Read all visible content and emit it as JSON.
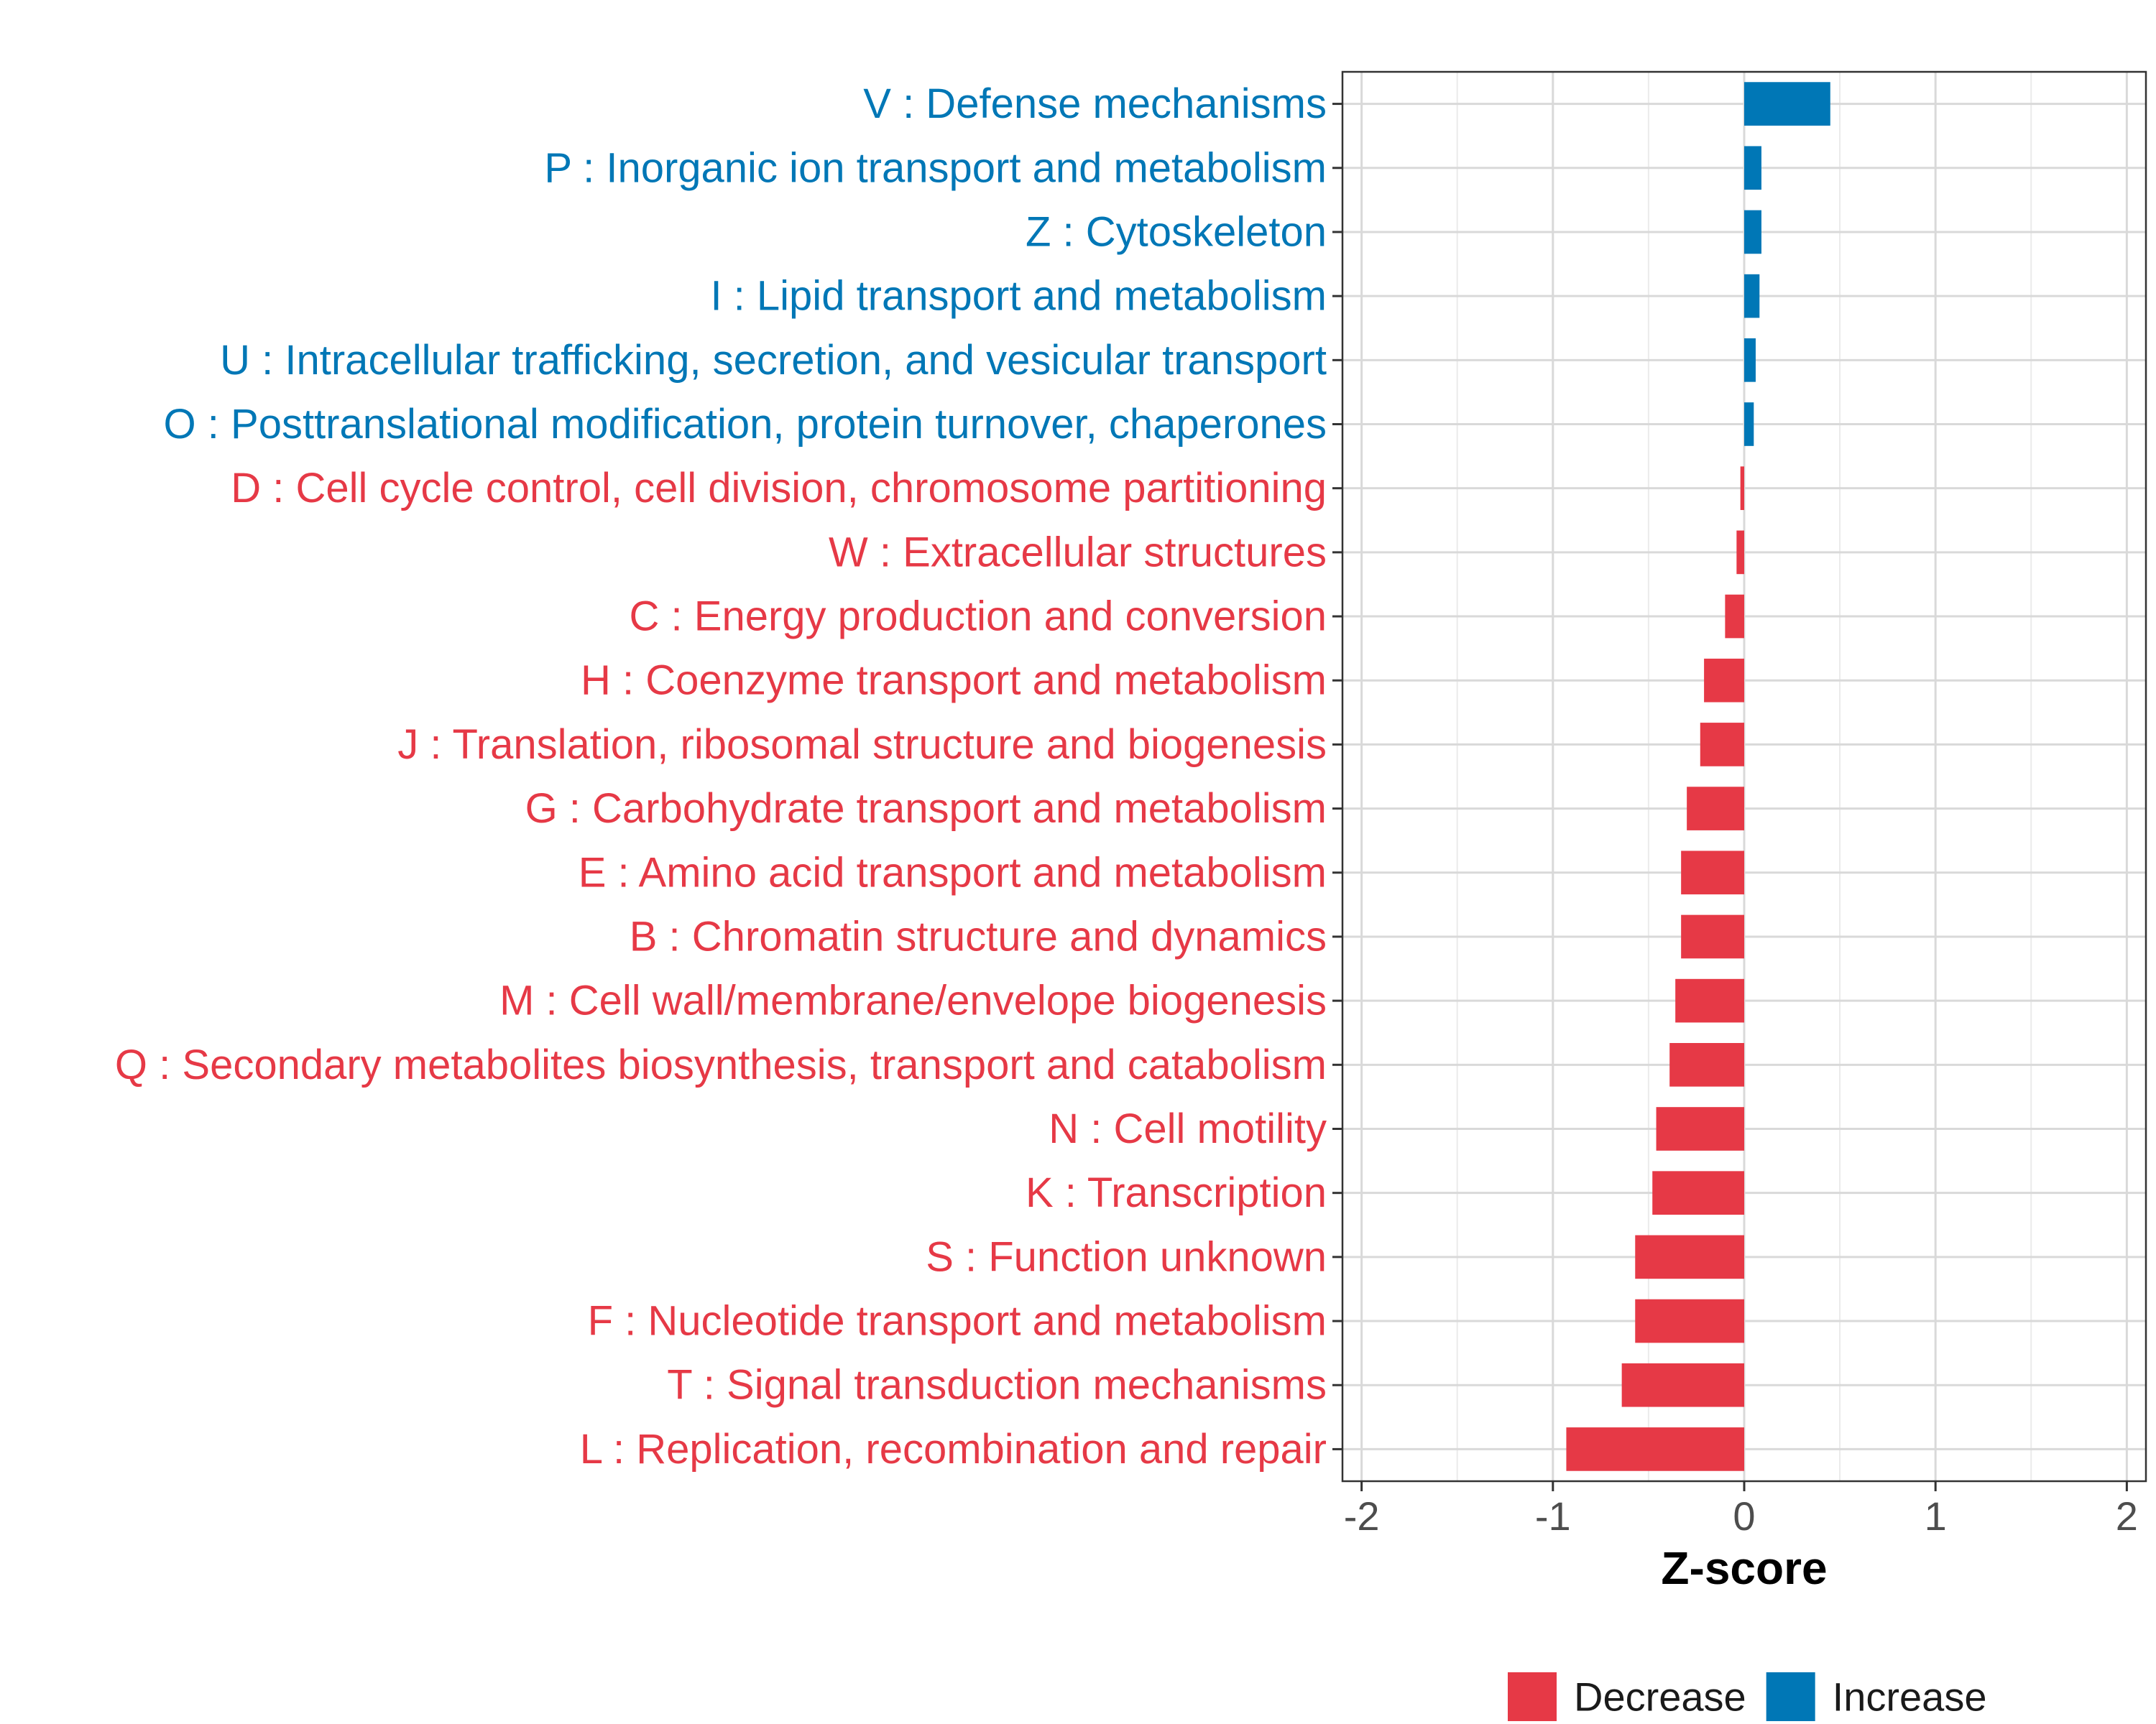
{
  "chart_data": {
    "type": "bar",
    "orientation": "horizontal",
    "title": "",
    "xlabel": "Z-score",
    "ylabel": "",
    "xlim": [
      -2.1,
      2.1
    ],
    "xticks": [
      -2,
      -1,
      0,
      1,
      2
    ],
    "xtick_labels": [
      "-2",
      "-1",
      "0",
      "1",
      "2"
    ],
    "grid": true,
    "legend_position": "bottom",
    "colors": {
      "Decrease": "#E63946",
      "Increase": "#0077B6"
    },
    "categories": [
      "V : Defense mechanisms",
      "P : Inorganic ion transport and metabolism",
      "Z : Cytoskeleton",
      "I : Lipid transport and metabolism",
      "U : Intracellular trafficking, secretion, and vesicular transport",
      "O : Posttranslational modification, protein turnover, chaperones",
      "D : Cell cycle control, cell division, chromosome partitioning",
      "W : Extracellular structures",
      "C : Energy production and conversion",
      "H : Coenzyme transport and metabolism",
      "J : Translation, ribosomal structure and biogenesis",
      "G : Carbohydrate transport and metabolism",
      "E : Amino acid transport and metabolism",
      "B : Chromatin structure and dynamics",
      "M : Cell wall/membrane/envelope biogenesis",
      "Q : Secondary metabolites biosynthesis, transport and catabolism",
      "N : Cell motility",
      "K : Transcription",
      "S : Function unknown",
      "F : Nucleotide transport and metabolism",
      "T : Signal transduction mechanisms",
      "L : Replication, recombination and repair"
    ],
    "values": [
      0.45,
      0.09,
      0.09,
      0.08,
      0.06,
      0.05,
      -0.02,
      -0.04,
      -0.1,
      -0.21,
      -0.23,
      -0.3,
      -0.33,
      -0.33,
      -0.36,
      -0.39,
      -0.46,
      -0.48,
      -0.57,
      -0.57,
      -0.64,
      -0.93
    ],
    "groups": [
      "Increase",
      "Increase",
      "Increase",
      "Increase",
      "Increase",
      "Increase",
      "Decrease",
      "Decrease",
      "Decrease",
      "Decrease",
      "Decrease",
      "Decrease",
      "Decrease",
      "Decrease",
      "Decrease",
      "Decrease",
      "Decrease",
      "Decrease",
      "Decrease",
      "Decrease",
      "Decrease",
      "Decrease"
    ],
    "legend": [
      "Decrease",
      "Increase"
    ]
  }
}
